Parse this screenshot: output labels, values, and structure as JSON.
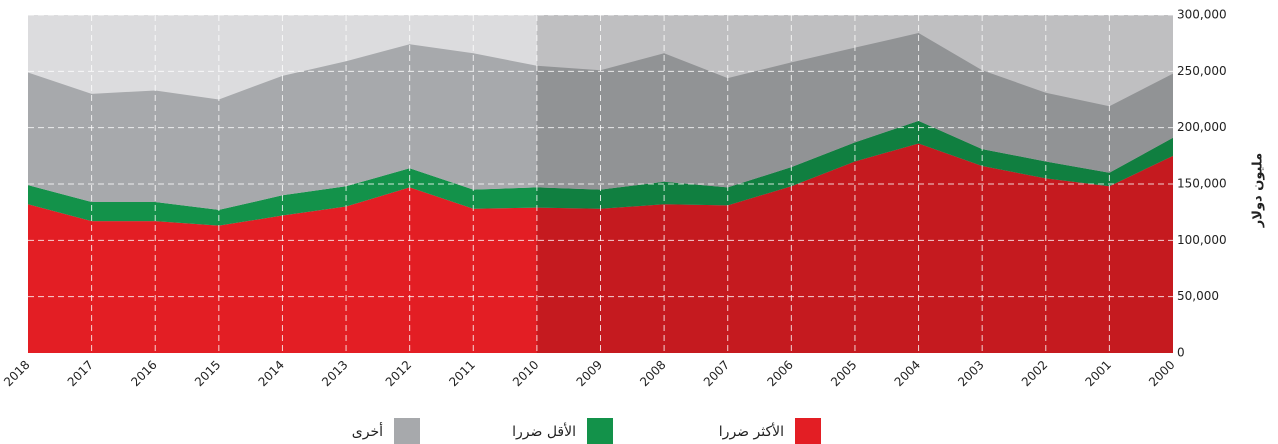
{
  "chart_data": {
    "type": "stacked_area",
    "y_label": "مليون دولار",
    "categories": [
      "2018",
      "2017",
      "2016",
      "2015",
      "2014",
      "2013",
      "2012",
      "2011",
      "2010",
      "2009",
      "2008",
      "2007",
      "2006",
      "2005",
      "2004",
      "2003",
      "2002",
      "2001",
      "2000"
    ],
    "series": [
      {
        "name": "الأكثر ضررا",
        "color": "#e31e24",
        "values": [
          132000,
          117000,
          117000,
          113000,
          122000,
          130000,
          147000,
          128000,
          129000,
          128000,
          132000,
          131000,
          148000,
          170000,
          186000,
          166000,
          155000,
          148000,
          175000
        ]
      },
      {
        "name": "الأقل ضررا",
        "color": "#13924a",
        "values": [
          17000,
          17000,
          17000,
          14000,
          18000,
          18000,
          17000,
          17000,
          18000,
          17000,
          20000,
          16000,
          17000,
          17000,
          20000,
          15000,
          15000,
          12000,
          16000
        ]
      },
      {
        "name": "أخرى",
        "color": "#a7a9ac",
        "values": [
          100000,
          96000,
          99000,
          98000,
          106000,
          111000,
          110000,
          121000,
          108000,
          106000,
          114000,
          97000,
          93000,
          84000,
          78000,
          70000,
          61000,
          59000,
          57000
        ]
      }
    ],
    "ylim": [
      0,
      300000
    ],
    "yticks": [
      0,
      {
        "value": 50000,
        "label": "50,000"
      },
      {
        "value": 100000,
        "label": "100,000"
      },
      {
        "value": 150000,
        "label": "150,000"
      },
      {
        "value": 200000,
        "label": "200,000"
      },
      {
        "value": 250000,
        "label": "250,000"
      },
      {
        "value": 300000,
        "label": "300,000"
      }
    ],
    "grid": true
  }
}
